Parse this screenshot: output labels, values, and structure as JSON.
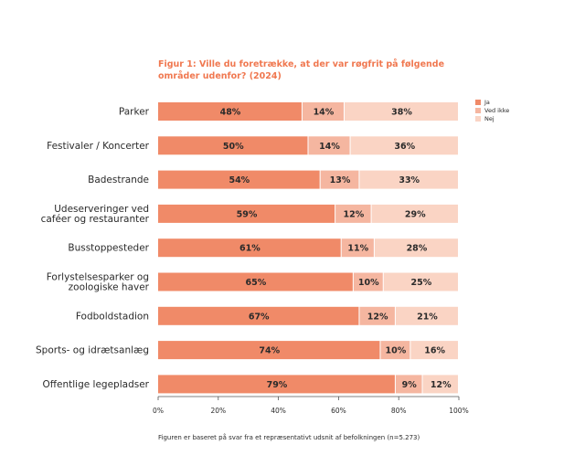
{
  "chart_data": {
    "type": "bar",
    "orientation": "horizontal",
    "stacked": true,
    "title_lines": [
      "Figur 1: Ville du foretrække, at der var røgfrit på følgende",
      "områder udenfor? (2024)"
    ],
    "categories": [
      [
        "Parker"
      ],
      [
        "Festivaler / Koncerter"
      ],
      [
        "Badestrande"
      ],
      [
        "Udeserveringer ved",
        "caféer og restauranter"
      ],
      [
        "Busstoppesteder"
      ],
      [
        "Forlystelsesparker og",
        "zoologiske haver"
      ],
      [
        "Fodboldstadion"
      ],
      [
        "Sports- og idrætsanlæg"
      ],
      [
        "Offentlige legepladser"
      ]
    ],
    "series": [
      {
        "name": "Ja",
        "color": "#f08a68",
        "values": [
          48,
          50,
          54,
          59,
          61,
          65,
          67,
          74,
          79
        ]
      },
      {
        "name": "Ved ikke",
        "color": "#f5b6a0",
        "values": [
          14,
          14,
          13,
          12,
          11,
          10,
          12,
          10,
          9
        ]
      },
      {
        "name": "Nej",
        "color": "#fad4c4",
        "values": [
          38,
          36,
          33,
          29,
          28,
          25,
          21,
          16,
          12
        ]
      }
    ],
    "value_suffix": "%",
    "xlim": [
      0,
      100
    ],
    "xticks": [
      "0%",
      "20%",
      "40%",
      "60%",
      "80%",
      "100%"
    ],
    "legend_position": "top-right",
    "grid": false,
    "footnote": "Figuren er baseret på svar fra et repræsentativt udsnit af befolkningen (n=5.273)",
    "title_color": "#f07850"
  }
}
